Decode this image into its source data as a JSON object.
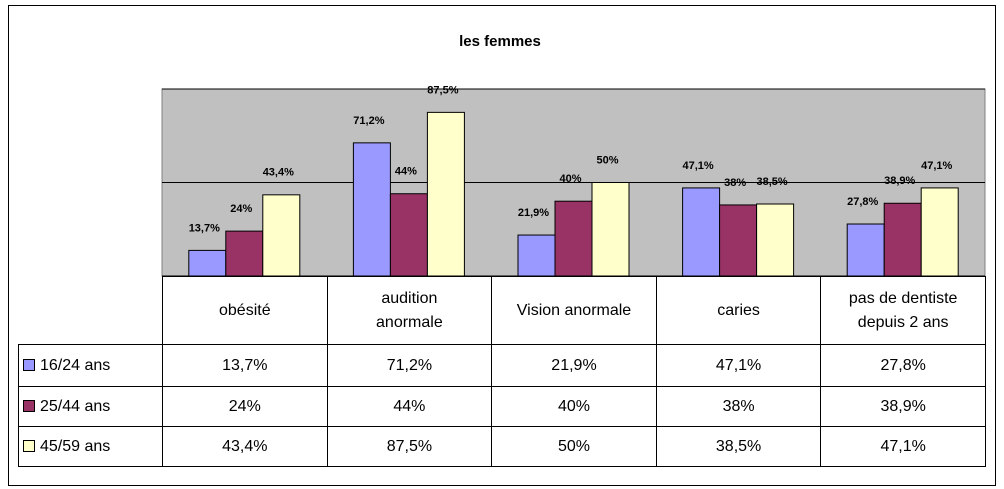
{
  "chart_data": {
    "type": "bar",
    "title": "les femmes",
    "categories": [
      "obésité",
      "audition anormale",
      "Vision anormale",
      "caries",
      "pas de dentiste depuis 2 ans"
    ],
    "series": [
      {
        "name": "16/24 ans",
        "color": "#9999ff",
        "values": [
          13.7,
          71.2,
          21.9,
          47.1,
          27.8
        ],
        "value_labels": [
          "13,7%",
          "71,2%",
          "21,9%",
          "47,1%",
          "27,8%"
        ]
      },
      {
        "name": "25/44 ans",
        "color": "#993366",
        "values": [
          24,
          44,
          40,
          38,
          38.9
        ],
        "value_labels": [
          "24%",
          "44%",
          "40%",
          "38%",
          "38,9%"
        ]
      },
      {
        "name": "45/59 ans",
        "color": "#ffffcc",
        "values": [
          43.4,
          87.5,
          50,
          38.5,
          47.1
        ],
        "value_labels": [
          "43,4%",
          "87,5%",
          "50%",
          "38,5%",
          "47,1%"
        ]
      }
    ],
    "ylim": [
      0,
      100
    ],
    "yticks": [
      0,
      50,
      100
    ],
    "grid": true,
    "plot_background": "#c0c0c0"
  }
}
